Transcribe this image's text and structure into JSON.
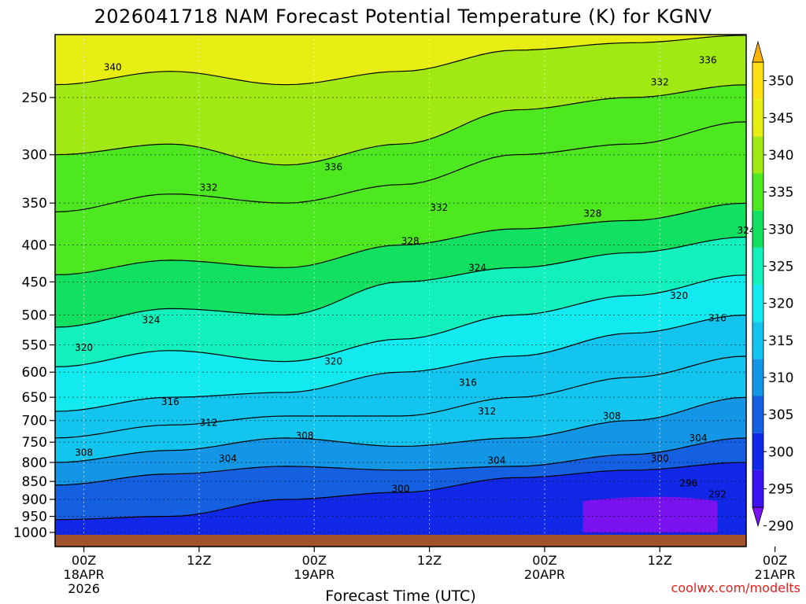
{
  "chart_data": {
    "type": "heatmap",
    "title": "2026041718 NAM Forecast Potential Temperature (K) for KGNV",
    "xlabel": "Forecast Time (UTC)",
    "ylabel": "",
    "y_axis": {
      "unit_hint": "hPa",
      "scale": "log",
      "inverted": true,
      "range": [
        1000,
        200
      ],
      "ticks": [
        "250",
        "300",
        "350",
        "400",
        "450",
        "500",
        "550",
        "600",
        "650",
        "700",
        "750",
        "800",
        "850",
        "900",
        "950",
        "1000"
      ]
    },
    "x_axis": {
      "range_hours_from_00Z_18APR": [
        -3,
        69
      ],
      "ticks": [
        {
          "hour": 0,
          "line1": "00Z",
          "line2": "18APR",
          "line3": "2026"
        },
        {
          "hour": 12,
          "line1": "12Z",
          "line2": "",
          "line3": ""
        },
        {
          "hour": 24,
          "line1": "00Z",
          "line2": "19APR",
          "line3": ""
        },
        {
          "hour": 36,
          "line1": "12Z",
          "line2": "",
          "line3": ""
        },
        {
          "hour": 48,
          "line1": "00Z",
          "line2": "20APR",
          "line3": ""
        },
        {
          "hour": 60,
          "line1": "12Z",
          "line2": "",
          "line3": ""
        },
        {
          "hour": 72,
          "line1": "00Z",
          "line2": "21APR",
          "line3": ""
        }
      ]
    },
    "colorbar": {
      "levels": [
        290,
        295,
        300,
        305,
        310,
        315,
        320,
        325,
        330,
        335,
        340,
        345,
        350
      ],
      "labels": [
        "290",
        "295",
        "300",
        "305",
        "310",
        "315",
        "320",
        "325",
        "330",
        "335",
        "340",
        "345",
        "350"
      ],
      "colors": [
        "#7a12f0",
        "#3c12f0",
        "#1228e8",
        "#1460e0",
        "#1496e6",
        "#12c4ee",
        "#12eaf0",
        "#12f0bc",
        "#12e060",
        "#4ee820",
        "#a2e812",
        "#e8ee12",
        "#ffe012",
        "#ffb400"
      ]
    },
    "grid": true,
    "time_columns_hours": [
      -3,
      9,
      21,
      33,
      45,
      57,
      69
    ],
    "isentrope_pressure_hPa": [
      {
        "theta": 300,
        "p": [
          960,
          950,
          900,
          880,
          840,
          820,
          800
        ]
      },
      {
        "theta": 304,
        "p": [
          860,
          830,
          810,
          820,
          810,
          780,
          740
        ]
      },
      {
        "theta": 308,
        "p": [
          800,
          770,
          740,
          760,
          740,
          700,
          650
        ]
      },
      {
        "theta": 312,
        "p": [
          740,
          710,
          690,
          690,
          650,
          610,
          570
        ]
      },
      {
        "theta": 316,
        "p": [
          680,
          650,
          640,
          600,
          570,
          530,
          500
        ]
      },
      {
        "theta": 320,
        "p": [
          590,
          560,
          580,
          540,
          500,
          470,
          440
        ]
      },
      {
        "theta": 324,
        "p": [
          520,
          490,
          500,
          450,
          430,
          410,
          390
        ]
      },
      {
        "theta": 328,
        "p": [
          440,
          420,
          430,
          400,
          380,
          370,
          350
        ]
      },
      {
        "theta": 332,
        "p": [
          360,
          340,
          350,
          330,
          300,
          290,
          270
        ]
      },
      {
        "theta": 336,
        "p": [
          300,
          290,
          310,
          290,
          260,
          250,
          240
        ]
      },
      {
        "theta": 340,
        "p": [
          240,
          230,
          240,
          230,
          215,
          210,
          205
        ]
      }
    ],
    "contour_labels": [
      {
        "text": "340",
        "hour": 3,
        "p": 227
      },
      {
        "text": "336",
        "hour": 26,
        "p": 312
      },
      {
        "text": "336",
        "hour": 65,
        "p": 222
      },
      {
        "text": "332",
        "hour": 13,
        "p": 333
      },
      {
        "text": "332",
        "hour": 37,
        "p": 355
      },
      {
        "text": "332",
        "hour": 60,
        "p": 238
      },
      {
        "text": "328",
        "hour": 34,
        "p": 395
      },
      {
        "text": "328",
        "hour": 53,
        "p": 362
      },
      {
        "text": "324",
        "hour": 7,
        "p": 508
      },
      {
        "text": "324",
        "hour": 41,
        "p": 430
      },
      {
        "text": "324",
        "hour": 69,
        "p": 382
      },
      {
        "text": "320",
        "hour": 0,
        "p": 555
      },
      {
        "text": "320",
        "hour": 26,
        "p": 580
      },
      {
        "text": "320",
        "hour": 62,
        "p": 470
      },
      {
        "text": "316",
        "hour": 9,
        "p": 660
      },
      {
        "text": "316",
        "hour": 40,
        "p": 620
      },
      {
        "text": "316",
        "hour": 66,
        "p": 505
      },
      {
        "text": "312",
        "hour": 13,
        "p": 705
      },
      {
        "text": "312",
        "hour": 42,
        "p": 680
      },
      {
        "text": "308",
        "hour": 0,
        "p": 775
      },
      {
        "text": "308",
        "hour": 23,
        "p": 735
      },
      {
        "text": "308",
        "hour": 55,
        "p": 690
      },
      {
        "text": "304",
        "hour": 15,
        "p": 790
      },
      {
        "text": "304",
        "hour": 43,
        "p": 795
      },
      {
        "text": "304",
        "hour": 64,
        "p": 740
      },
      {
        "text": "300",
        "hour": 33,
        "p": 870
      },
      {
        "text": "300",
        "hour": 60,
        "p": 790
      },
      {
        "text": "296",
        "hour": 63,
        "p": 855
      },
      {
        "text": "292",
        "hour": 66,
        "p": 885
      }
    ]
  },
  "credit": "coolwx.com/modelts"
}
